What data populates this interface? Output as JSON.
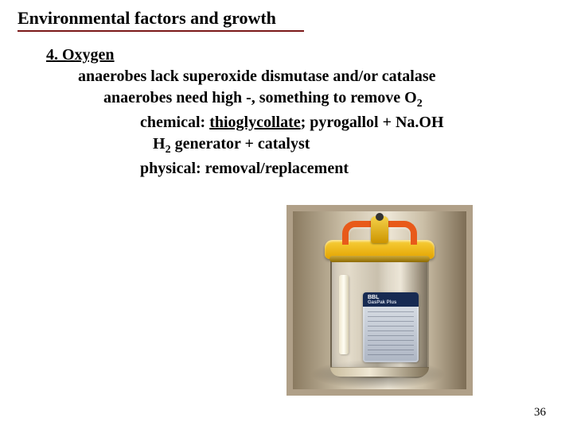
{
  "title": "Environmental factors and growth",
  "underline_color": "#7a1818",
  "heading": "4. Oxygen",
  "lines": {
    "a": "anaerobes lack superoxide dismutase and/or catalase",
    "b_pre": "anaerobes need high -, something to remove O",
    "b_sub": "2",
    "c_pre": "chemical: ",
    "c_u": "thioglycollate",
    "c_post": "; pyrogallol + Na.OH",
    "d_pre": "H",
    "d_sub": "2",
    "d_post": " generator + catalyst",
    "e": "physical: removal/replacement"
  },
  "packet": {
    "brand": "BBL",
    "product": "GasPak Plus"
  },
  "colors": {
    "lid": "#e3a300",
    "handle": "#e85a1a",
    "jar_bg": "#b0a088",
    "packet_band": "#172a52"
  },
  "slide_number": "36"
}
